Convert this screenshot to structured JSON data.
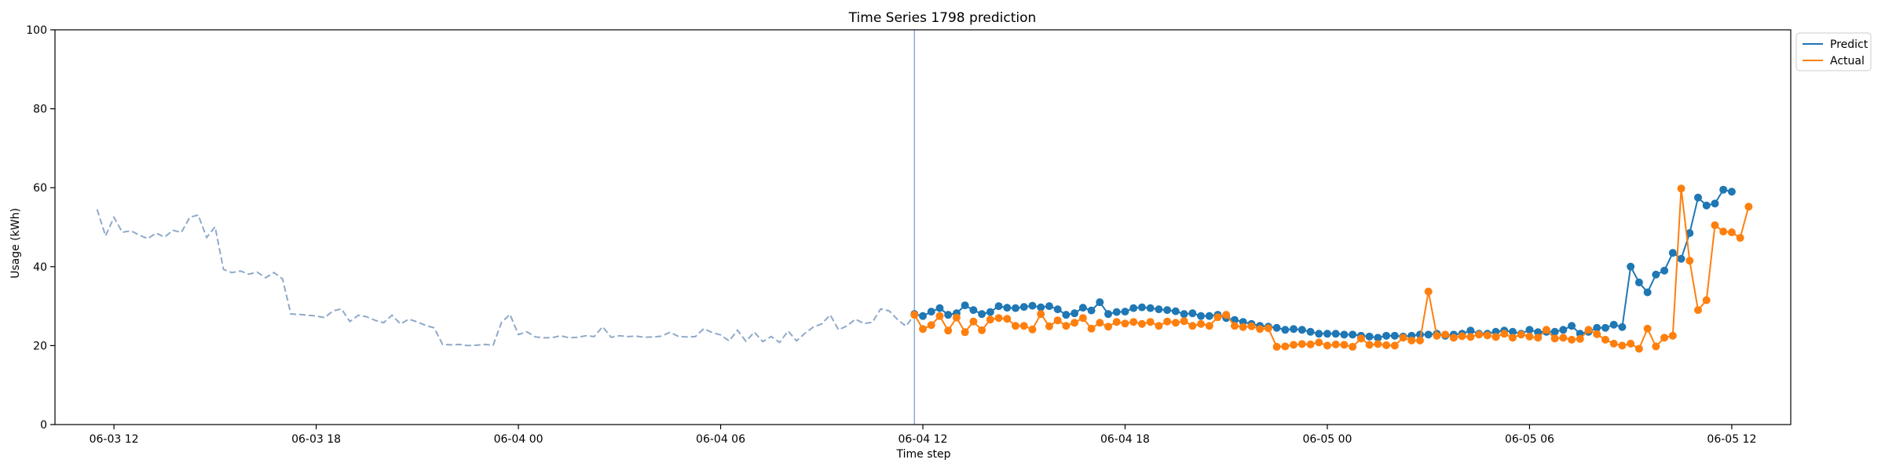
{
  "chart_data": {
    "type": "line",
    "title": "Time Series 1798 prediction",
    "xlabel": "Time step",
    "ylabel": "Usage (kWh)",
    "ylim": [
      0,
      100
    ],
    "xlim": [
      "2024-06-03T10:15",
      "2024-06-05T13:45"
    ],
    "yticks": [
      0,
      20,
      40,
      60,
      80,
      100
    ],
    "xticks": [
      {
        "t": "2024-06-03T12:00",
        "label": "06-03 12"
      },
      {
        "t": "2024-06-03T18:00",
        "label": "06-03 18"
      },
      {
        "t": "2024-06-04T00:00",
        "label": "06-04 00"
      },
      {
        "t": "2024-06-04T06:00",
        "label": "06-04 06"
      },
      {
        "t": "2024-06-04T12:00",
        "label": "06-04 12"
      },
      {
        "t": "2024-06-04T18:00",
        "label": "06-04 18"
      },
      {
        "t": "2024-06-05T00:00",
        "label": "06-05 00"
      },
      {
        "t": "2024-06-05T06:00",
        "label": "06-05 06"
      },
      {
        "t": "2024-06-05T12:00",
        "label": "06-05 12"
      }
    ],
    "grid": false,
    "legend": {
      "position": "top-right"
    },
    "split_time": "2024-06-04T11:45",
    "colors": {
      "predict": "#1f77b4",
      "actual": "#ff7f0e",
      "history": "#8fa9c9",
      "split": "#8fa9d8"
    },
    "history": {
      "start": "2024-06-03T11:30",
      "step_minutes": 15,
      "style": "dashed",
      "values": [
        54.5,
        47.8,
        52.5,
        48.7,
        49.1,
        48.0,
        47.1,
        48.5,
        47.5,
        49.2,
        48.7,
        52.5,
        53.1,
        47.4,
        50.1,
        39.3,
        38.5,
        38.9,
        38.1,
        38.6,
        37.2,
        38.5,
        36.9,
        28.0,
        27.9,
        27.7,
        27.5,
        27.1,
        28.8,
        29.3,
        26.1,
        27.7,
        27.3,
        26.4,
        25.8,
        27.7,
        25.5,
        26.7,
        26.0,
        25.1,
        24.5,
        20.3,
        20.2,
        20.3,
        20.0,
        20.1,
        20.3,
        20.1,
        25.9,
        27.9,
        22.8,
        23.5,
        22.2,
        22.0,
        22.0,
        22.5,
        22.0,
        22.1,
        22.5,
        22.3,
        24.8,
        22.1,
        22.5,
        22.3,
        22.4,
        22.1,
        22.2,
        22.4,
        23.4,
        22.3,
        22.2,
        22.3,
        24.3,
        23.3,
        22.7,
        21.2,
        23.9,
        21.1,
        23.4,
        21.0,
        22.3,
        20.8,
        23.7,
        21.2,
        23.1,
        24.7,
        25.5,
        27.8,
        24.0,
        25.0,
        26.7,
        25.6,
        25.9,
        29.3,
        28.8,
        26.6,
        24.9,
        27.8
      ]
    },
    "series": [
      {
        "name": "Predict",
        "start": "2024-06-04T11:45",
        "step_minutes": 15,
        "values": [
          28.0,
          27.5,
          28.6,
          29.5,
          27.8,
          28.2,
          30.2,
          29.0,
          28.0,
          28.5,
          30.0,
          29.6,
          29.5,
          29.8,
          30.1,
          29.7,
          30.0,
          29.2,
          27.8,
          28.2,
          29.6,
          28.9,
          31.0,
          28.0,
          28.5,
          28.6,
          29.5,
          29.7,
          29.5,
          29.2,
          29.0,
          28.7,
          28.0,
          28.2,
          27.5,
          27.5,
          27.8,
          27.0,
          26.5,
          26.0,
          25.5,
          25.0,
          24.8,
          24.5,
          24.0,
          24.2,
          24.0,
          23.5,
          23.0,
          23.0,
          23.0,
          22.8,
          22.8,
          22.5,
          22.3,
          22.0,
          22.5,
          22.5,
          22.3,
          22.5,
          22.8,
          22.8,
          23.0,
          22.5,
          22.8,
          23.0,
          23.8,
          23.0,
          23.0,
          23.5,
          23.8,
          23.5,
          23.0,
          24.0,
          23.4,
          23.5,
          23.5,
          24.0,
          25.0,
          23.0,
          23.5,
          24.5,
          24.5,
          25.3,
          24.7,
          40.0,
          36.0,
          33.5,
          38.0,
          39.0,
          43.5,
          42.0,
          48.5,
          57.5,
          55.5,
          56.0,
          59.5,
          59.0
        ]
      },
      {
        "name": "Actual",
        "start": "2024-06-04T11:45",
        "step_minutes": 15,
        "values": [
          27.8,
          24.2,
          25.2,
          27.5,
          23.8,
          27.1,
          23.4,
          26.1,
          23.9,
          26.6,
          27.0,
          26.8,
          25.0,
          25.0,
          24.1,
          28.0,
          24.9,
          26.4,
          25.0,
          25.8,
          27.0,
          24.3,
          25.8,
          24.8,
          26.0,
          25.6,
          26.0,
          25.5,
          26.0,
          25.0,
          26.1,
          25.8,
          26.2,
          25.0,
          25.5,
          25.0,
          27.2,
          27.8,
          25.0,
          24.7,
          24.9,
          24.2,
          24.4,
          19.7,
          19.8,
          20.2,
          20.4,
          20.3,
          20.8,
          20.0,
          20.3,
          20.2,
          19.7,
          21.8,
          20.2,
          20.4,
          20.1,
          20.0,
          22.0,
          21.3,
          21.3,
          33.7,
          22.5,
          22.8,
          22.0,
          22.4,
          22.2,
          22.8,
          22.6,
          22.2,
          23.0,
          22.0,
          22.8,
          22.3,
          22.0,
          24.0,
          21.8,
          22.0,
          21.5,
          21.7,
          24.0,
          22.9,
          21.5,
          20.5,
          20.0,
          20.5,
          19.2,
          24.3,
          19.8,
          22.0,
          22.5,
          59.8,
          41.5,
          29.0,
          31.5,
          50.5,
          48.9,
          48.7,
          47.3,
          55.2
        ]
      }
    ]
  }
}
